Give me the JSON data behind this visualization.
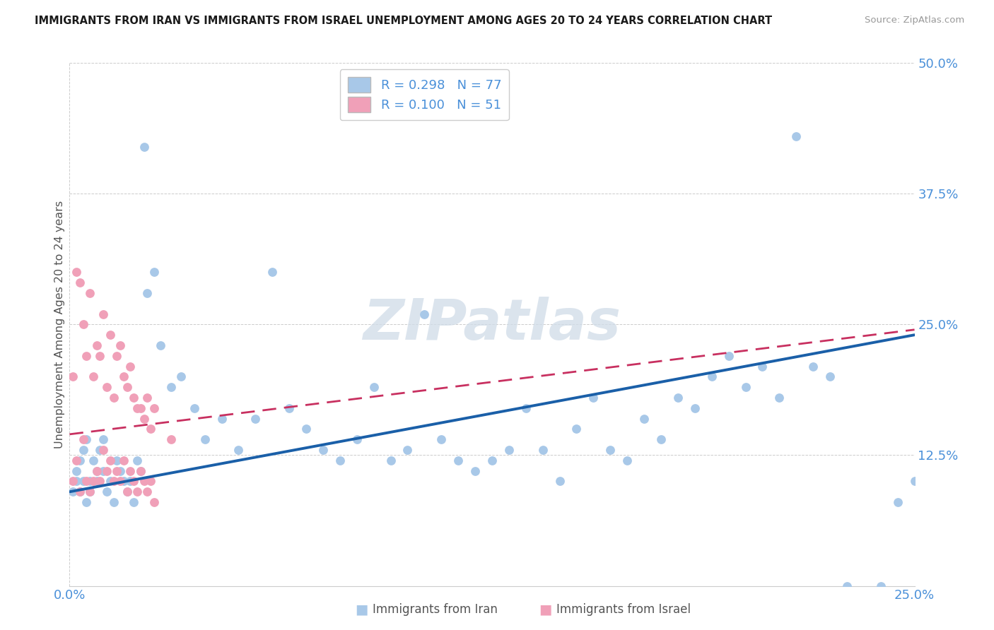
{
  "title": "IMMIGRANTS FROM IRAN VS IMMIGRANTS FROM ISRAEL UNEMPLOYMENT AMONG AGES 20 TO 24 YEARS CORRELATION CHART",
  "source": "Source: ZipAtlas.com",
  "legend_iran": "R = 0.298   N = 77",
  "legend_israel": "R = 0.100   N = 51",
  "xlabel_iran": "Immigrants from Iran",
  "xlabel_israel": "Immigrants from Israel",
  "ylabel": "Unemployment Among Ages 20 to 24 years",
  "xlim": [
    0.0,
    0.25
  ],
  "ylim": [
    0.0,
    0.5
  ],
  "ytick_vals": [
    0.0,
    0.125,
    0.25,
    0.375,
    0.5
  ],
  "ytick_labels": [
    "",
    "12.5%",
    "25.0%",
    "37.5%",
    "50.0%"
  ],
  "xtick_vals": [
    0.0,
    0.25
  ],
  "xtick_labels": [
    "0.0%",
    "25.0%"
  ],
  "iran_dot_color": "#a8c8e8",
  "iran_line_color": "#1a5fa8",
  "israel_dot_color": "#f0a0b8",
  "israel_line_color": "#c83060",
  "grid_color": "#cccccc",
  "bg_color": "#ffffff",
  "tick_color": "#4a90d9",
  "watermark_text": "ZIPatlas",
  "watermark_color": "#d0dce8",
  "iran_line_x0": 0.0,
  "iran_line_y0": 0.09,
  "iran_line_x1": 0.25,
  "iran_line_y1": 0.24,
  "israel_line_x0": 0.0,
  "israel_line_y0": 0.145,
  "israel_line_x1": 0.25,
  "israel_line_y1": 0.245,
  "iran_scatter_x": [
    0.001,
    0.002,
    0.002,
    0.003,
    0.003,
    0.004,
    0.004,
    0.005,
    0.005,
    0.006,
    0.006,
    0.007,
    0.008,
    0.008,
    0.009,
    0.01,
    0.01,
    0.011,
    0.012,
    0.013,
    0.014,
    0.015,
    0.016,
    0.017,
    0.018,
    0.019,
    0.02,
    0.021,
    0.022,
    0.023,
    0.025,
    0.027,
    0.03,
    0.033,
    0.037,
    0.04,
    0.045,
    0.05,
    0.055,
    0.06,
    0.065,
    0.07,
    0.075,
    0.08,
    0.085,
    0.09,
    0.095,
    0.1,
    0.105,
    0.11,
    0.115,
    0.12,
    0.125,
    0.13,
    0.135,
    0.14,
    0.145,
    0.15,
    0.155,
    0.16,
    0.165,
    0.17,
    0.175,
    0.18,
    0.185,
    0.19,
    0.195,
    0.2,
    0.205,
    0.21,
    0.215,
    0.22,
    0.225,
    0.23,
    0.24,
    0.245,
    0.25
  ],
  "iran_scatter_y": [
    0.09,
    0.11,
    0.1,
    0.12,
    0.09,
    0.13,
    0.1,
    0.08,
    0.14,
    0.1,
    0.09,
    0.12,
    0.11,
    0.1,
    0.13,
    0.14,
    0.11,
    0.09,
    0.1,
    0.08,
    0.12,
    0.11,
    0.1,
    0.09,
    0.1,
    0.08,
    0.12,
    0.11,
    0.42,
    0.28,
    0.3,
    0.23,
    0.19,
    0.2,
    0.17,
    0.14,
    0.16,
    0.13,
    0.16,
    0.3,
    0.17,
    0.15,
    0.13,
    0.12,
    0.14,
    0.19,
    0.12,
    0.13,
    0.26,
    0.14,
    0.12,
    0.11,
    0.12,
    0.13,
    0.17,
    0.13,
    0.1,
    0.15,
    0.18,
    0.13,
    0.12,
    0.16,
    0.14,
    0.18,
    0.17,
    0.2,
    0.22,
    0.19,
    0.21,
    0.18,
    0.43,
    0.21,
    0.2,
    0.0,
    0.0,
    0.08,
    0.1
  ],
  "israel_scatter_x": [
    0.001,
    0.001,
    0.002,
    0.002,
    0.003,
    0.003,
    0.004,
    0.004,
    0.005,
    0.005,
    0.006,
    0.006,
    0.007,
    0.007,
    0.008,
    0.008,
    0.009,
    0.009,
    0.01,
    0.01,
    0.011,
    0.011,
    0.012,
    0.012,
    0.013,
    0.013,
    0.014,
    0.014,
    0.015,
    0.015,
    0.016,
    0.016,
    0.017,
    0.017,
    0.018,
    0.018,
    0.019,
    0.019,
    0.02,
    0.02,
    0.021,
    0.021,
    0.022,
    0.022,
    0.023,
    0.023,
    0.024,
    0.024,
    0.025,
    0.025,
    0.03
  ],
  "israel_scatter_y": [
    0.2,
    0.1,
    0.3,
    0.12,
    0.29,
    0.09,
    0.25,
    0.14,
    0.22,
    0.1,
    0.28,
    0.09,
    0.2,
    0.1,
    0.23,
    0.11,
    0.22,
    0.1,
    0.26,
    0.13,
    0.19,
    0.11,
    0.24,
    0.12,
    0.18,
    0.1,
    0.22,
    0.11,
    0.23,
    0.1,
    0.2,
    0.12,
    0.19,
    0.09,
    0.21,
    0.11,
    0.18,
    0.1,
    0.17,
    0.09,
    0.17,
    0.11,
    0.16,
    0.1,
    0.18,
    0.09,
    0.15,
    0.1,
    0.17,
    0.08,
    0.14
  ]
}
